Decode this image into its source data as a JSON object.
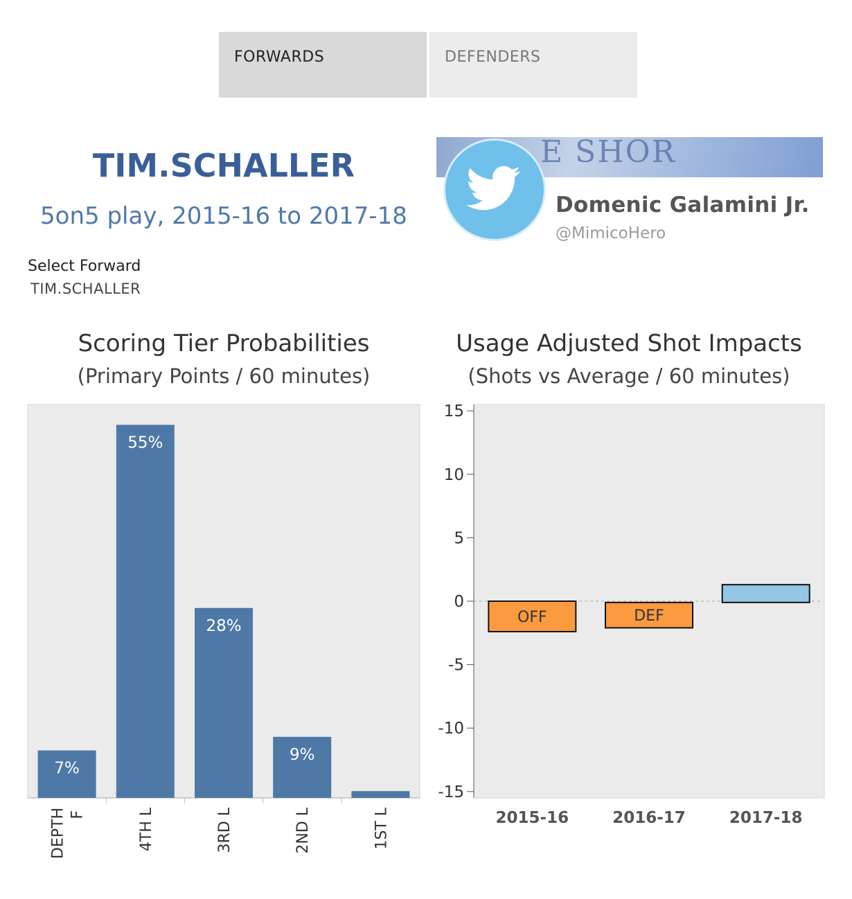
{
  "tabs": [
    {
      "label": "FORWARDS",
      "active": true
    },
    {
      "label": "DEFENDERS",
      "active": false
    }
  ],
  "player": {
    "name": "TIM.SCHALLER",
    "subtitle": "5on5 play, 2015-16 to 2017-18"
  },
  "filter": {
    "label": "Select Forward",
    "value": "TIM.SCHALLER"
  },
  "twitter": {
    "banner_text": "E SHOR",
    "name": "Domenic Galamini Jr.",
    "handle": "@MimicoHero",
    "icon": "twitter-bird-icon"
  },
  "chart_data": [
    {
      "type": "bar",
      "title": "Scoring Tier Probabilities",
      "subtitle": "(Primary Points / 60 minutes)",
      "categories": [
        "DEPTH F",
        "4TH L",
        "3RD L",
        "2ND L",
        "1ST L"
      ],
      "values": [
        7,
        55,
        28,
        9,
        1
      ],
      "value_labels": [
        "7%",
        "55%",
        "28%",
        "9%",
        "1%"
      ],
      "ylim": [
        0,
        58
      ],
      "bar_color": "#4e79a7",
      "background": "#ebebeb",
      "grid": false
    },
    {
      "type": "bar",
      "title": "Usage Adjusted Shot Impacts",
      "subtitle": "(Shots vs Average / 60 minutes)",
      "categories": [
        "2015-16",
        "2016-17",
        "2017-18"
      ],
      "series": [
        {
          "label": "OFF",
          "top": 0,
          "bottom": -2.4,
          "color": "#fb9a3f"
        },
        {
          "label": "DEF",
          "top": -0.1,
          "bottom": -2.1,
          "color": "#fb9a3f"
        },
        {
          "label": "",
          "top": 1.3,
          "bottom": -0.1,
          "color": "#94c6e6"
        }
      ],
      "yticks": [
        15,
        10,
        5,
        0,
        -5,
        -10,
        -15
      ],
      "ytick_labels": [
        "15",
        "10",
        "5",
        "0",
        "-5",
        "-10",
        "-15"
      ],
      "ylim": [
        -15.5,
        15.5
      ],
      "zero_line": true,
      "background": "#ebebeb",
      "grid": false
    }
  ]
}
